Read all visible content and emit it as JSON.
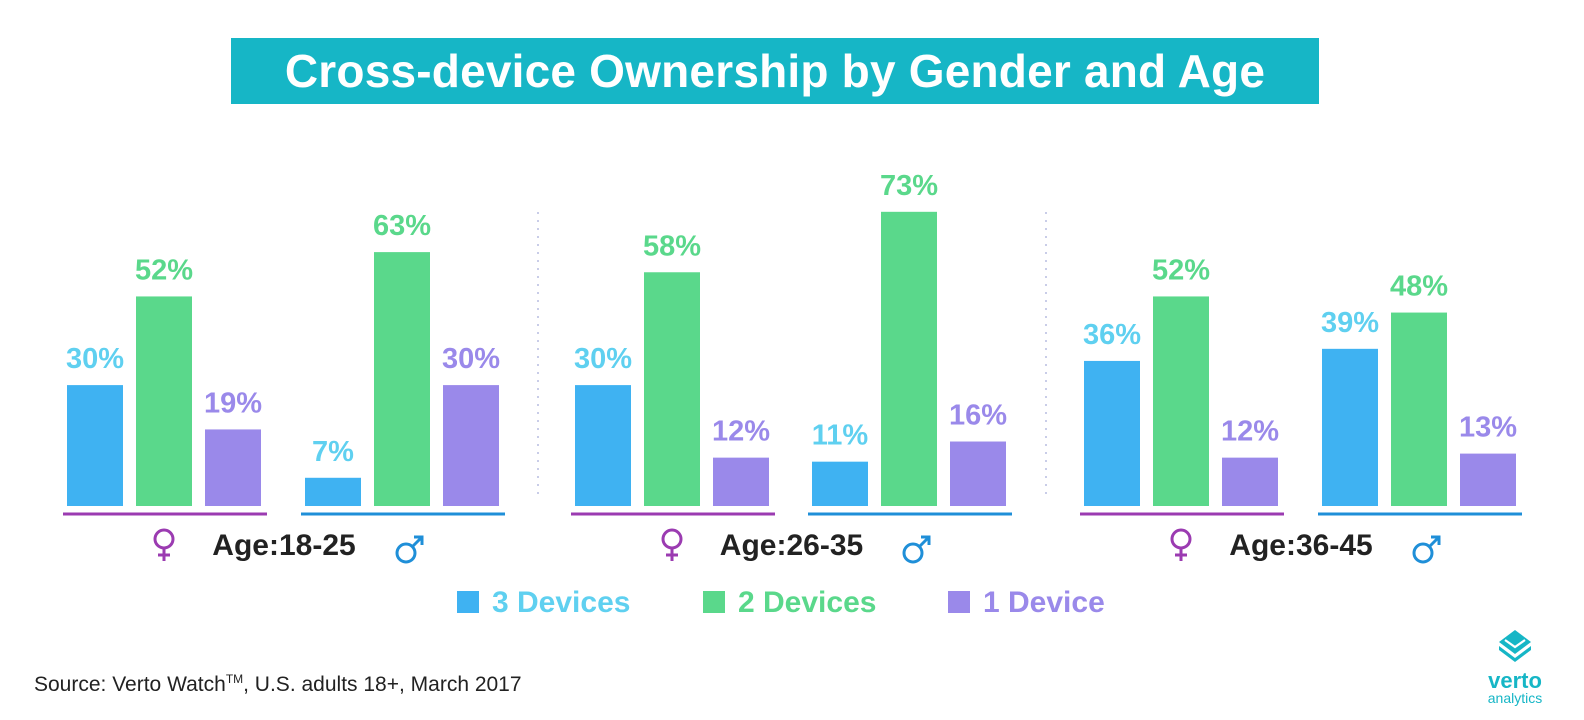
{
  "title": "Cross-device Ownership by Gender and Age",
  "colors": {
    "banner": "#16b6c6",
    "three_devices": "#3fb2f2",
    "two_devices": "#5ad88b",
    "one_device": "#9a89ea",
    "label_three": "#5fd0f0",
    "label_two": "#5ad88b",
    "label_one": "#9a89ea",
    "female": "#9b3bb1",
    "male": "#1f8fd8"
  },
  "chart_data": {
    "type": "bar",
    "groups": [
      {
        "age_label": "Age:18-25",
        "female": [
          30,
          52,
          19
        ],
        "male": [
          7,
          63,
          30
        ]
      },
      {
        "age_label": "Age:26-35",
        "female": [
          30,
          58,
          12
        ],
        "male": [
          11,
          73,
          16
        ]
      },
      {
        "age_label": "Age:36-45",
        "female": [
          36,
          52,
          12
        ],
        "male": [
          39,
          48,
          13
        ]
      }
    ],
    "series": [
      {
        "name": "3 Devices"
      },
      {
        "name": "2 Devices"
      },
      {
        "name": "1 Device"
      }
    ],
    "ylim": [
      0,
      100
    ],
    "legend": "bottom"
  },
  "gender_icons": {
    "female": "female-symbol-icon",
    "male": "male-symbol-icon"
  },
  "source": {
    "text": "Source: Verto Watch",
    "tm": "TM",
    "rest": ", U.S. adults 18+, March 2017"
  },
  "logo": {
    "word": "verto",
    "sub": "analytics"
  }
}
